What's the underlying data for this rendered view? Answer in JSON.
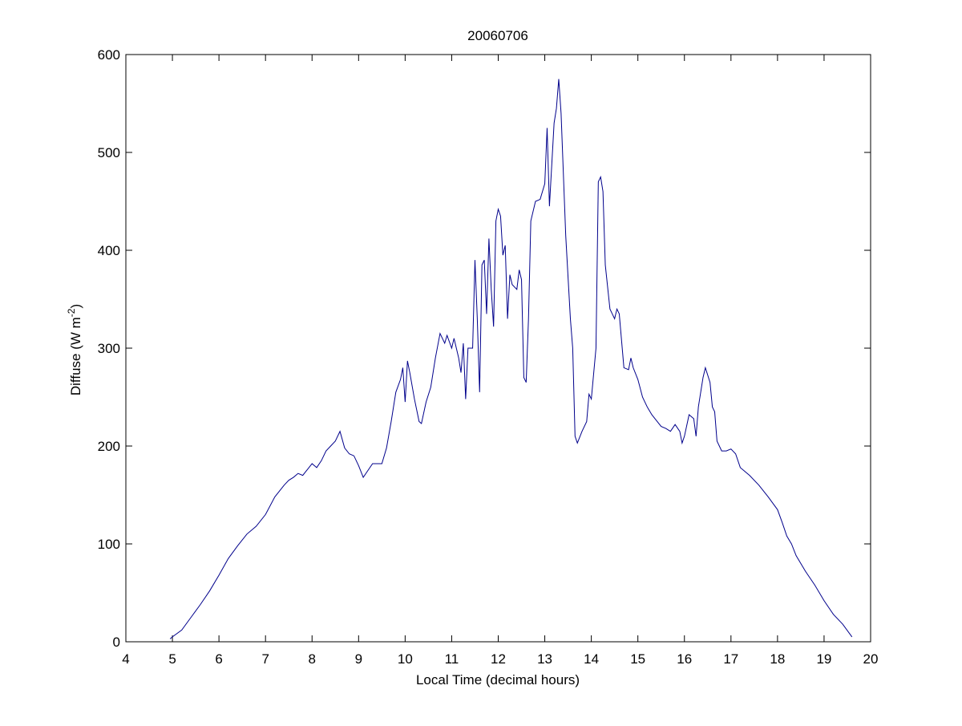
{
  "chart_data": {
    "type": "line",
    "title": "20060706",
    "x_label": "Local Time (decimal hours)",
    "y_label": {
      "text": "Diffuse (W m",
      "superscript": "-2",
      "suffix": ")"
    },
    "xlim": [
      4,
      20
    ],
    "xticks": [
      4,
      5,
      6,
      7,
      8,
      9,
      10,
      11,
      12,
      13,
      14,
      15,
      16,
      17,
      18,
      19,
      20
    ],
    "ylim": [
      0,
      600
    ],
    "yticks": [
      0,
      100,
      200,
      300,
      400,
      500,
      600
    ],
    "series": [
      {
        "color": "#00008b",
        "x": [
          4.95,
          5.0,
          5.2,
          5.4,
          5.6,
          5.8,
          6.0,
          6.2,
          6.4,
          6.6,
          6.8,
          7.0,
          7.2,
          7.4,
          7.5,
          7.6,
          7.7,
          7.8,
          7.9,
          8.0,
          8.1,
          8.2,
          8.3,
          8.4,
          8.5,
          8.6,
          8.7,
          8.8,
          8.9,
          9.0,
          9.1,
          9.2,
          9.3,
          9.4,
          9.5,
          9.6,
          9.7,
          9.8,
          9.9,
          9.95,
          10.0,
          10.05,
          10.1,
          10.2,
          10.3,
          10.35,
          10.45,
          10.55,
          10.65,
          10.75,
          10.85,
          10.9,
          11.0,
          11.05,
          11.15,
          11.2,
          11.25,
          11.3,
          11.35,
          11.45,
          11.5,
          11.55,
          11.6,
          11.65,
          11.7,
          11.75,
          11.8,
          11.85,
          11.9,
          11.95,
          12.0,
          12.05,
          12.1,
          12.15,
          12.2,
          12.25,
          12.3,
          12.4,
          12.45,
          12.5,
          12.55,
          12.6,
          12.65,
          12.7,
          12.8,
          12.9,
          13.0,
          13.05,
          13.1,
          13.2,
          13.25,
          13.3,
          13.35,
          13.45,
          13.55,
          13.6,
          13.65,
          13.7,
          13.8,
          13.9,
          13.95,
          14.0,
          14.1,
          14.15,
          14.2,
          14.25,
          14.3,
          14.4,
          14.5,
          14.55,
          14.6,
          14.7,
          14.8,
          14.85,
          14.9,
          15.0,
          15.1,
          15.2,
          15.3,
          15.4,
          15.5,
          15.6,
          15.7,
          15.8,
          15.9,
          15.95,
          16.0,
          16.1,
          16.2,
          16.25,
          16.3,
          16.4,
          16.45,
          16.55,
          16.6,
          16.65,
          16.7,
          16.8,
          16.9,
          17.0,
          17.1,
          17.2,
          17.4,
          17.6,
          17.8,
          18.0,
          18.1,
          18.2,
          18.3,
          18.4,
          18.6,
          18.8,
          19.0,
          19.2,
          19.4,
          19.6
        ],
        "values": [
          3,
          5,
          12,
          25,
          38,
          52,
          68,
          85,
          98,
          110,
          118,
          130,
          148,
          160,
          165,
          168,
          172,
          170,
          176,
          182,
          178,
          185,
          195,
          200,
          205,
          215,
          198,
          192,
          190,
          180,
          168,
          175,
          182,
          182,
          182,
          198,
          225,
          255,
          268,
          280,
          245,
          287,
          275,
          248,
          225,
          223,
          245,
          260,
          290,
          315,
          305,
          313,
          300,
          310,
          290,
          275,
          305,
          248,
          300,
          300,
          390,
          330,
          255,
          385,
          390,
          335,
          412,
          360,
          322,
          430,
          442,
          435,
          395,
          405,
          330,
          375,
          365,
          360,
          380,
          370,
          270,
          265,
          330,
          430,
          450,
          452,
          468,
          525,
          445,
          530,
          545,
          575,
          540,
          415,
          330,
          300,
          210,
          203,
          215,
          225,
          253,
          248,
          300,
          470,
          475,
          460,
          385,
          340,
          330,
          340,
          335,
          280,
          278,
          290,
          280,
          268,
          250,
          240,
          232,
          226,
          220,
          218,
          215,
          222,
          215,
          203,
          210,
          232,
          228,
          210,
          240,
          270,
          280,
          265,
          240,
          235,
          205,
          195,
          195,
          197,
          192,
          178,
          170,
          160,
          148,
          135,
          122,
          108,
          100,
          88,
          72,
          58,
          42,
          28,
          18,
          5
        ]
      }
    ]
  }
}
